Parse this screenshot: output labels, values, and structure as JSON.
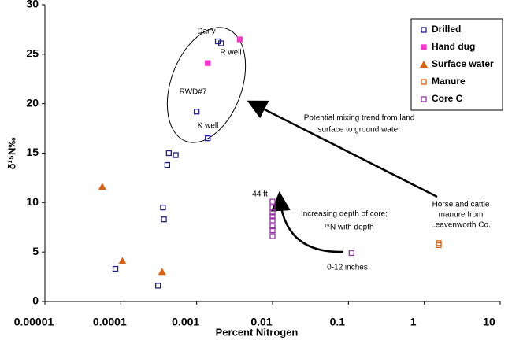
{
  "chart_data": {
    "type": "scatter",
    "xlabel": "Percent Nitrogen",
    "ylabel": "δ¹⁵N‰",
    "xscale": "log",
    "xlim": [
      1e-05,
      10
    ],
    "xticks": [
      1e-05,
      0.0001,
      0.001,
      0.01,
      0.1,
      1,
      10
    ],
    "ylim": [
      0,
      30
    ],
    "yticks": [
      0,
      5,
      10,
      15,
      20,
      25,
      30
    ],
    "legend": "upper right",
    "series": [
      {
        "name": "Drilled",
        "color": "#1f1f8f",
        "marker": "square-open",
        "x": [
          0.0019,
          0.0021,
          0.001,
          0.0014,
          0.00043,
          0.00053,
          0.00041,
          0.00036,
          0.00037,
          8.5e-05,
          0.00031
        ],
        "values": [
          26.3,
          26.1,
          19.2,
          16.5,
          15.0,
          14.8,
          13.8,
          9.5,
          8.3,
          3.3,
          1.6
        ]
      },
      {
        "name": "Hand dug",
        "color": "#ff33cc",
        "marker": "square",
        "x": [
          0.0014,
          0.0037
        ],
        "values": [
          24.1,
          26.5
        ]
      },
      {
        "name": "Surface water",
        "color": "#e06010",
        "marker": "triangle",
        "x": [
          5.7e-05,
          0.000105,
          0.00035
        ],
        "values": [
          11.6,
          4.1,
          3.0
        ]
      },
      {
        "name": "Manure",
        "color": "#e06010",
        "marker": "square-open",
        "x": [
          1.55,
          1.55
        ],
        "values": [
          5.9,
          5.7
        ]
      },
      {
        "name": "Core C",
        "color": "#9933aa",
        "marker": "square-open",
        "x": [
          0.01,
          0.01,
          0.01,
          0.01,
          0.01,
          0.01,
          0.01,
          0.01,
          0.11
        ],
        "values": [
          10.1,
          9.5,
          9.0,
          8.6,
          8.2,
          7.6,
          7.2,
          6.6,
          4.9
        ]
      }
    ],
    "annotations": [
      "Dairy",
      "R well",
      "RWD#7",
      "K well",
      "Potential mixing trend from land",
      "surface to ground water",
      "Horse and cattle",
      "manure from",
      "Leavenworth Co.",
      "44 ft",
      "Increasing depth of core;",
      "¹⁵N with depth",
      "0-12 inches"
    ]
  }
}
